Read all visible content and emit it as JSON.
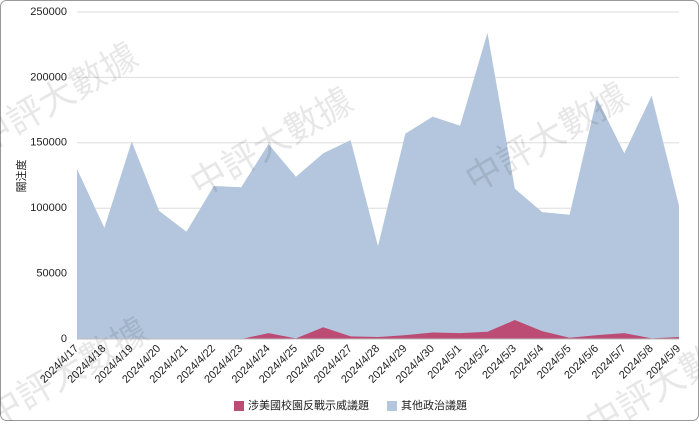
{
  "chart_data": {
    "type": "area",
    "y_label": "關注度",
    "watermark": "中評大數據",
    "categories": [
      "2024/4/17",
      "2024/4/18",
      "2024/4/19",
      "2024/4/20",
      "2024/4/21",
      "2024/4/22",
      "2024/4/23",
      "2024/4/24",
      "2024/4/25",
      "2024/4/26",
      "2024/4/27",
      "2024/4/28",
      "2024/4/29",
      "2024/4/30",
      "2024/5/1",
      "2024/5/2",
      "2024/5/3",
      "2024/5/4",
      "2024/5/5",
      "2024/5/6",
      "2024/5/7",
      "2024/5/8",
      "2024/5/9"
    ],
    "series": [
      {
        "name": "涉美國校園反戰示威議題",
        "color": "#bd4c75",
        "values": [
          0,
          0,
          0,
          0,
          0,
          0,
          0,
          4500,
          500,
          9000,
          2000,
          1500,
          3000,
          5000,
          4500,
          5500,
          14500,
          6000,
          1000,
          3000,
          4500,
          500,
          1500
        ]
      },
      {
        "name": "其他政治議題",
        "color": "#b3c6dd",
        "values": [
          130000,
          85000,
          151000,
          98000,
          82000,
          117000,
          116000,
          149000,
          124000,
          142000,
          152000,
          71000,
          157000,
          170000,
          163000,
          234000,
          115000,
          97000,
          95000,
          184000,
          142000,
          186000,
          102000
        ]
      }
    ],
    "ylim": [
      0,
      250000
    ],
    "yticks": [
      0,
      50000,
      100000,
      150000,
      200000,
      250000
    ],
    "grid": true
  }
}
